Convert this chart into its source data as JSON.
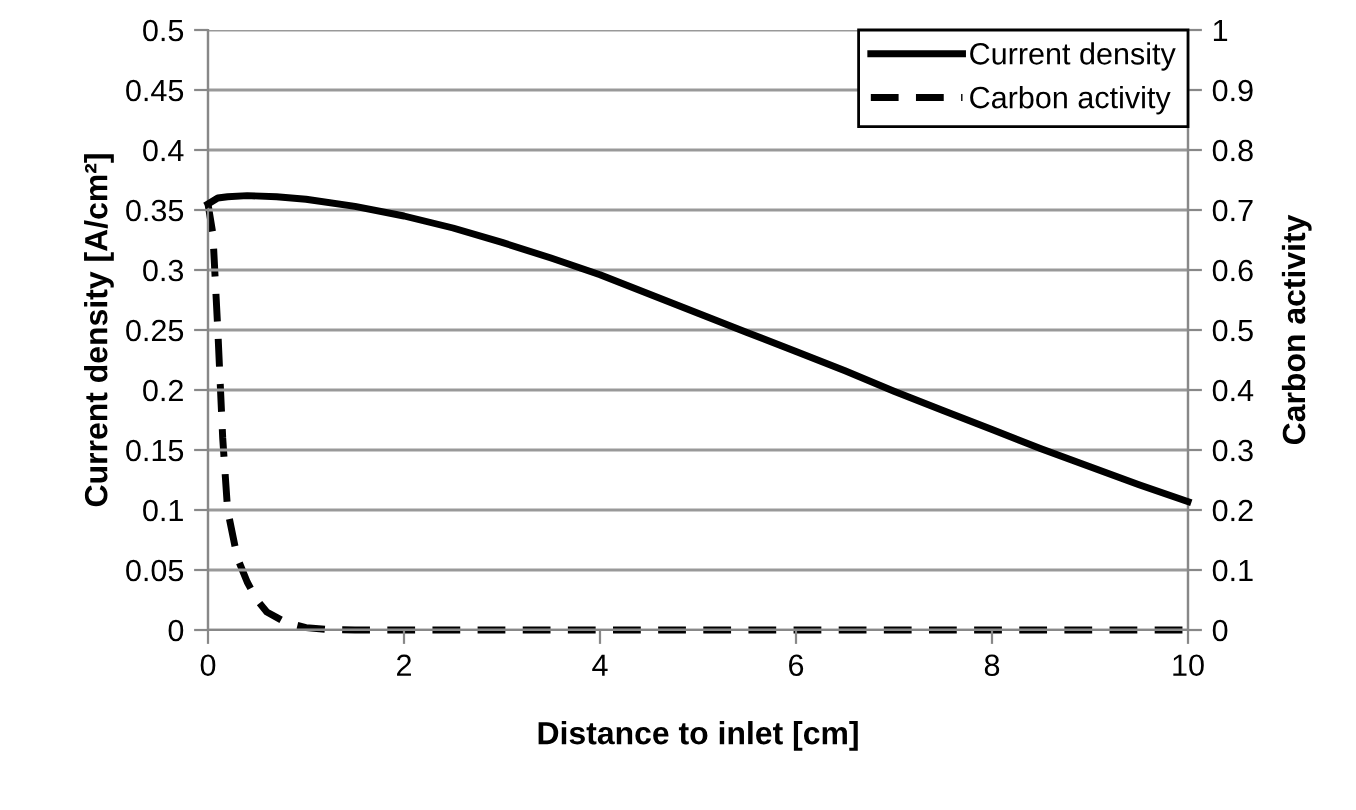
{
  "chart_data": {
    "type": "line",
    "xlabel": "Distance to inlet [cm]",
    "ylabel": "Current density [A/cm²]",
    "y2label": "Carbon activity",
    "xlim": [
      0,
      10
    ],
    "xticks": [
      0,
      2,
      4,
      6,
      8,
      10
    ],
    "ylim": [
      0,
      0.5
    ],
    "yticks": [
      0,
      0.05,
      0.1,
      0.15,
      0.2,
      0.25,
      0.3,
      0.35,
      0.4,
      0.45,
      0.5
    ],
    "y2lim": [
      0,
      1
    ],
    "y2ticks": [
      0,
      0.1,
      0.2,
      0.3,
      0.4,
      0.5,
      0.6,
      0.7,
      0.8,
      0.9,
      1
    ],
    "grid": "y",
    "legend": "top right",
    "series": [
      {
        "name": "Current density",
        "color": "#000000",
        "line_style": "solid",
        "x": [
          0,
          0.1,
          0.2,
          0.4,
          0.7,
          1,
          1.5,
          2,
          2.5,
          3,
          3.5,
          4,
          4.5,
          5,
          5.5,
          6,
          6.5,
          7,
          7.5,
          8,
          8.5,
          9,
          9.5,
          10
        ],
        "values": [
          0.355,
          0.36,
          0.361,
          0.362,
          0.361,
          0.359,
          0.353,
          0.345,
          0.335,
          0.323,
          0.31,
          0.296,
          0.28,
          0.264,
          0.248,
          0.232,
          0.216,
          0.199,
          0.183,
          0.167,
          0.151,
          0.136,
          0.121,
          0.107
        ]
      },
      {
        "name": "Carbon activity",
        "color": "#000000",
        "line_style": "dashed",
        "axis": "y2",
        "x": [
          0,
          0.05,
          0.1,
          0.15,
          0.2,
          0.3,
          0.4,
          0.5,
          0.6,
          0.8,
          1,
          1.2,
          1.5,
          2,
          4,
          6,
          8,
          10
        ],
        "values": [
          0.71,
          0.66,
          0.5,
          0.32,
          0.2,
          0.12,
          0.08,
          0.05,
          0.03,
          0.012,
          0.004,
          0.001,
          0,
          0,
          0,
          0,
          0,
          0
        ]
      }
    ]
  }
}
